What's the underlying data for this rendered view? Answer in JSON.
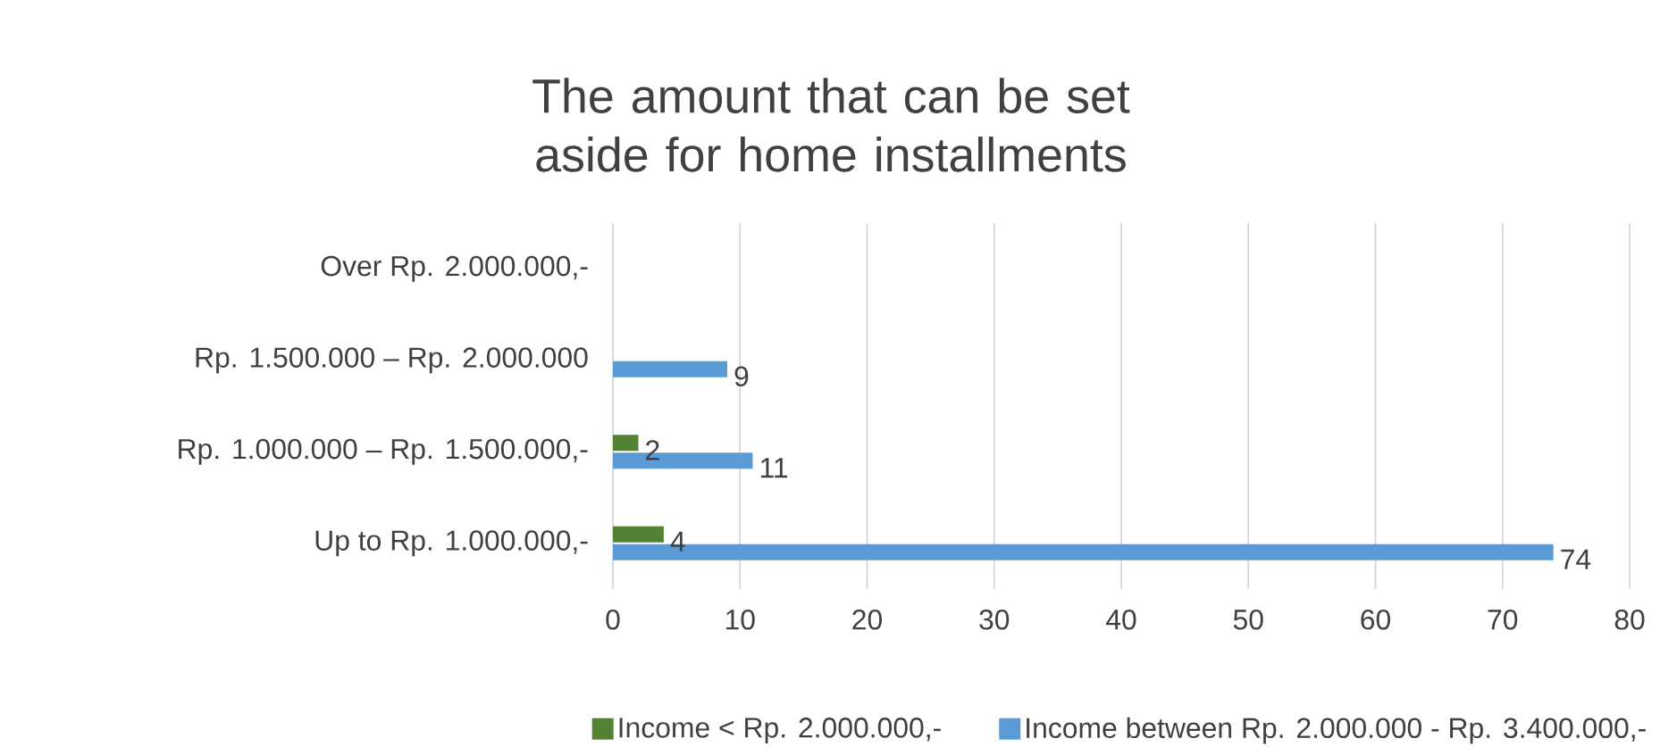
{
  "chart_data": {
    "type": "bar",
    "orientation": "horizontal",
    "title": "The amount that can be set aside for home installments",
    "categories": [
      "Over Rp. 2.000.000,-",
      "Rp. 1.500.000 – Rp. 2.000.000",
      "Rp. 1.000.000 – Rp. 1.500.000,-",
      "Up to Rp. 1.000.000,-"
    ],
    "series": [
      {
        "name": "Income < Rp. 2.000.000,-",
        "color": "#548235",
        "values": [
          null,
          null,
          2,
          4
        ]
      },
      {
        "name": "Income between Rp. 2.000.000 - Rp. 3.400.000,-",
        "color": "#5b9bd5",
        "values": [
          null,
          9,
          11,
          74
        ]
      }
    ],
    "xlim": [
      0,
      80
    ],
    "xticks": [
      0,
      10,
      20,
      30,
      40,
      50,
      60,
      70,
      80
    ],
    "grid": "x",
    "legend": "bottom",
    "data_labels": true
  }
}
